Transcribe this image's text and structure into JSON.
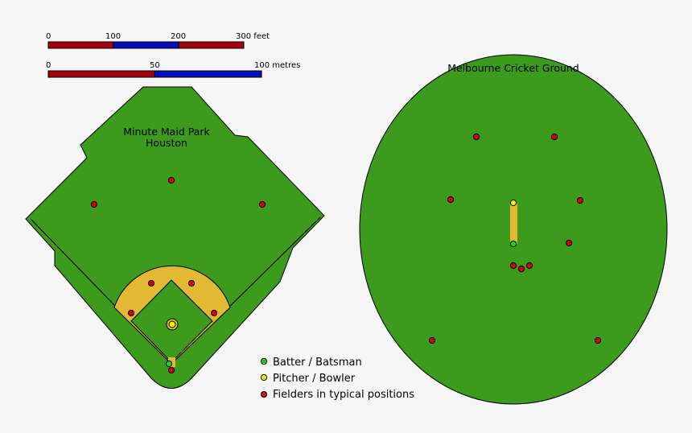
{
  "colors": {
    "field": "#3c9a1c",
    "infield_dirt": "#e2b933",
    "bar_red": "#a50010",
    "bar_blue": "#0410bb",
    "batter": "#1ed31e",
    "pitcher": "#f2f200",
    "fielder": "#dd0000"
  },
  "scales": {
    "feet": {
      "ticks": [
        "0",
        "100",
        "200",
        "300 feet"
      ]
    },
    "metres": {
      "ticks": [
        "0",
        "50",
        "100 metres"
      ]
    }
  },
  "baseball": {
    "title_line1": "Minute Maid Park",
    "title_line2": "Houston"
  },
  "cricket": {
    "title": "Melbourne Cricket Ground"
  },
  "legend": {
    "batter": "Batter / Batsman",
    "pitcher": "Pitcher / Bowler",
    "fielders": "Fielders in typical positions"
  }
}
